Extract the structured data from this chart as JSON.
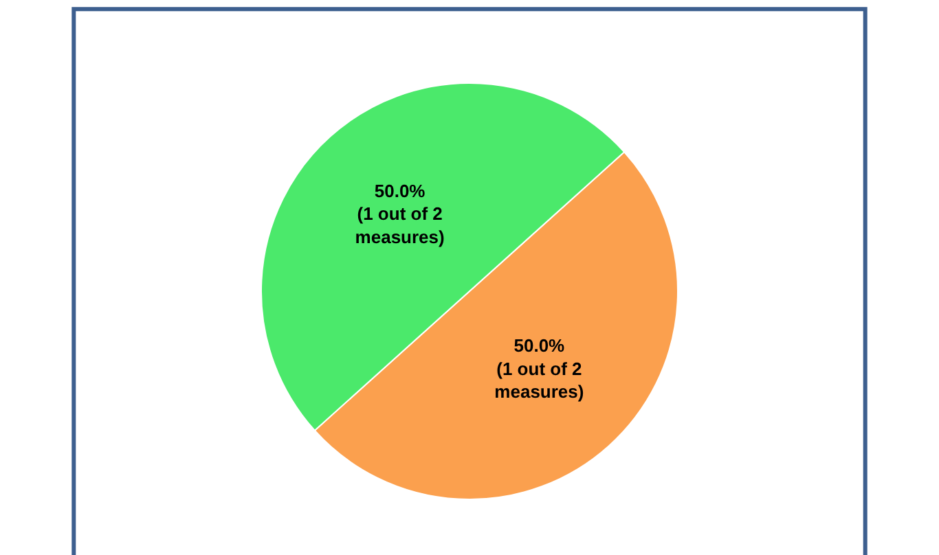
{
  "chart_data": {
    "type": "pie",
    "categories": [
      null,
      null
    ],
    "values": [
      50.0,
      50.0
    ],
    "colors": [
      "#fba04e",
      "#4be96b"
    ],
    "value_labels": [
      "50.0%\n(1 out of 2\nmeasures)",
      "50.0%\n(1 out of 2\nmeasures)"
    ],
    "legend": false
  }
}
